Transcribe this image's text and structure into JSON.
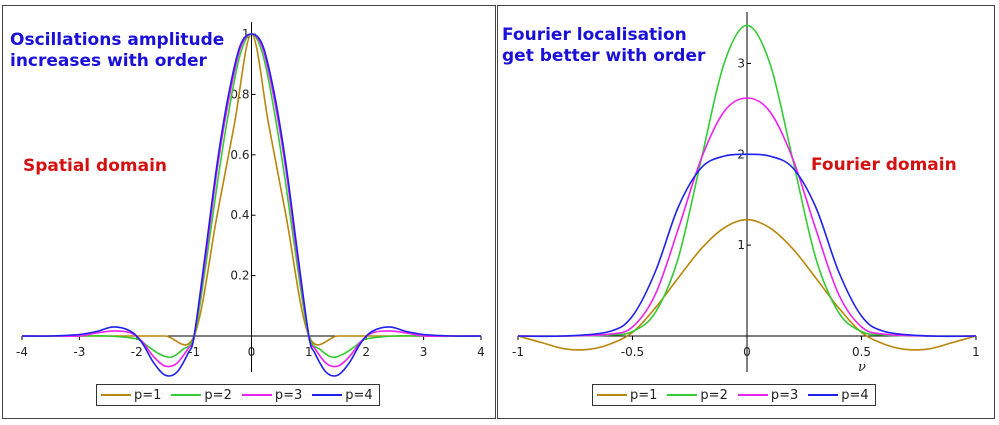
{
  "chart_data": [
    {
      "type": "line",
      "title": "",
      "xlabel": "",
      "ylabel": "",
      "xlim": [
        -4,
        4
      ],
      "ylim": [
        -0.13,
        1.02
      ],
      "xticks": [
        "-4",
        "-3",
        "-2",
        "-1",
        "0",
        "1",
        "2",
        "3",
        "4"
      ],
      "yticks": [
        "0.2",
        "0.4",
        "0.6",
        "0.8",
        "1"
      ],
      "annotations": {
        "top": [
          "Oscillations amplitude",
          "increases with order"
        ],
        "side": "Spatial domain"
      },
      "legend": "bottom",
      "series": [
        {
          "name": "p=1",
          "color": "#b8860b",
          "x": [
            -4,
            -3,
            -2,
            -1.5,
            -1,
            -0.6,
            -0.3,
            0,
            0.3,
            0.6,
            1,
            1.5,
            2,
            3,
            4
          ],
          "y": [
            0,
            0,
            0,
            0,
            0,
            0.4,
            0.7,
            1,
            0.7,
            0.4,
            0,
            0,
            0,
            0,
            0
          ]
        },
        {
          "name": "p=2",
          "color": "#33cc33",
          "x": [
            -4,
            -3,
            -2.5,
            -2,
            -1.8,
            -1.6,
            -1.4,
            -1.2,
            -1,
            -0.8,
            -0.6,
            -0.4,
            -0.2,
            0,
            0.2,
            0.4,
            0.6,
            0.8,
            1,
            1.2,
            1.4,
            1.6,
            1.8,
            2,
            2.5,
            3,
            4
          ],
          "y": [
            0,
            0,
            0,
            -0.01,
            -0.035,
            -0.06,
            -0.07,
            -0.045,
            0,
            0.23,
            0.5,
            0.74,
            0.93,
            1,
            0.93,
            0.74,
            0.5,
            0.23,
            0,
            -0.045,
            -0.07,
            -0.06,
            -0.035,
            -0.01,
            0,
            0,
            0
          ]
        },
        {
          "name": "p=3",
          "color": "#ee22ee",
          "x": [
            -4,
            -3.5,
            -3,
            -2.7,
            -2.4,
            -2.1,
            -1.9,
            -1.7,
            -1.5,
            -1.3,
            -1.1,
            -1,
            -0.8,
            -0.6,
            -0.4,
            -0.2,
            0,
            0.2,
            0.4,
            0.6,
            0.8,
            1,
            1.1,
            1.3,
            1.5,
            1.7,
            1.9,
            2.1,
            2.4,
            2.7,
            3,
            3.5,
            4
          ],
          "y": [
            0,
            0,
            0,
            0.01,
            0.017,
            0.01,
            -0.02,
            -0.07,
            -0.1,
            -0.09,
            -0.04,
            0,
            0.26,
            0.55,
            0.78,
            0.95,
            1,
            0.95,
            0.78,
            0.55,
            0.26,
            0,
            -0.04,
            -0.09,
            -0.1,
            -0.07,
            -0.02,
            0.01,
            0.017,
            0.01,
            0,
            0,
            0
          ]
        },
        {
          "name": "p=4",
          "color": "#2020ee",
          "x": [
            -4,
            -3.5,
            -3,
            -2.7,
            -2.4,
            -2.1,
            -1.9,
            -1.7,
            -1.5,
            -1.3,
            -1.1,
            -1,
            -0.8,
            -0.6,
            -0.4,
            -0.2,
            0,
            0.2,
            0.4,
            0.6,
            0.8,
            1,
            1.1,
            1.3,
            1.5,
            1.7,
            1.9,
            2.1,
            2.4,
            2.7,
            3,
            3.5,
            4
          ],
          "y": [
            0,
            0,
            0.005,
            0.015,
            0.03,
            0.015,
            -0.025,
            -0.09,
            -0.13,
            -0.12,
            -0.055,
            0,
            0.28,
            0.57,
            0.8,
            0.96,
            1,
            0.96,
            0.8,
            0.57,
            0.28,
            0,
            -0.055,
            -0.12,
            -0.13,
            -0.09,
            -0.025,
            0.015,
            0.03,
            0.015,
            0.005,
            0,
            0
          ]
        }
      ]
    },
    {
      "type": "line",
      "title": "",
      "xlabel": "ν",
      "ylabel": "",
      "xlim": [
        -1,
        1
      ],
      "ylim": [
        -0.2,
        3.5
      ],
      "xticks": [
        "-1",
        "-0.5",
        "0",
        "0.5",
        "1"
      ],
      "yticks": [
        "1",
        "2",
        "3"
      ],
      "annotations": {
        "top": [
          "Fourier localisation",
          "get better with order"
        ],
        "side": "Fourier domain"
      },
      "legend": "bottom",
      "series": [
        {
          "name": "p=1",
          "color": "#b8860b",
          "x": [
            -1,
            -0.9,
            -0.8,
            -0.7,
            -0.6,
            -0.5,
            -0.4,
            -0.3,
            -0.2,
            -0.1,
            0,
            0.1,
            0.2,
            0.3,
            0.4,
            0.5,
            0.6,
            0.7,
            0.8,
            0.9,
            1
          ],
          "y": [
            0,
            -0.07,
            -0.14,
            -0.15,
            -0.09,
            0.04,
            0.31,
            0.64,
            0.96,
            1.19,
            1.28,
            1.19,
            0.96,
            0.64,
            0.31,
            0.04,
            -0.09,
            -0.15,
            -0.14,
            -0.07,
            0
          ]
        },
        {
          "name": "p=2",
          "color": "#33cc33",
          "x": [
            -1,
            -0.8,
            -0.6,
            -0.5,
            -0.4,
            -0.3,
            -0.2,
            -0.1,
            0,
            0.1,
            0.2,
            0.3,
            0.4,
            0.5,
            0.6,
            0.8,
            1
          ],
          "y": [
            0,
            0,
            0.01,
            0.05,
            0.26,
            0.86,
            1.94,
            3,
            3.42,
            3,
            1.94,
            0.86,
            0.26,
            0.05,
            0.01,
            0,
            0
          ]
        },
        {
          "name": "p=3",
          "color": "#ee22ee",
          "x": [
            -1,
            -0.8,
            -0.6,
            -0.5,
            -0.4,
            -0.3,
            -0.2,
            -0.1,
            0,
            0.1,
            0.2,
            0.3,
            0.4,
            0.5,
            0.6,
            0.8,
            1
          ],
          "y": [
            0,
            0,
            0.02,
            0.1,
            0.46,
            1.18,
            1.95,
            2.47,
            2.62,
            2.47,
            1.95,
            1.18,
            0.46,
            0.1,
            0.02,
            0,
            0
          ]
        },
        {
          "name": "p=4",
          "color": "#2020ee",
          "x": [
            -1,
            -0.8,
            -0.6,
            -0.5,
            -0.4,
            -0.3,
            -0.2,
            -0.1,
            0,
            0.1,
            0.2,
            0.3,
            0.4,
            0.5,
            0.6,
            0.8,
            1
          ],
          "y": [
            0,
            0,
            0.05,
            0.22,
            0.71,
            1.42,
            1.85,
            1.98,
            2,
            1.98,
            1.85,
            1.42,
            0.71,
            0.22,
            0.05,
            0,
            0
          ]
        }
      ]
    }
  ]
}
